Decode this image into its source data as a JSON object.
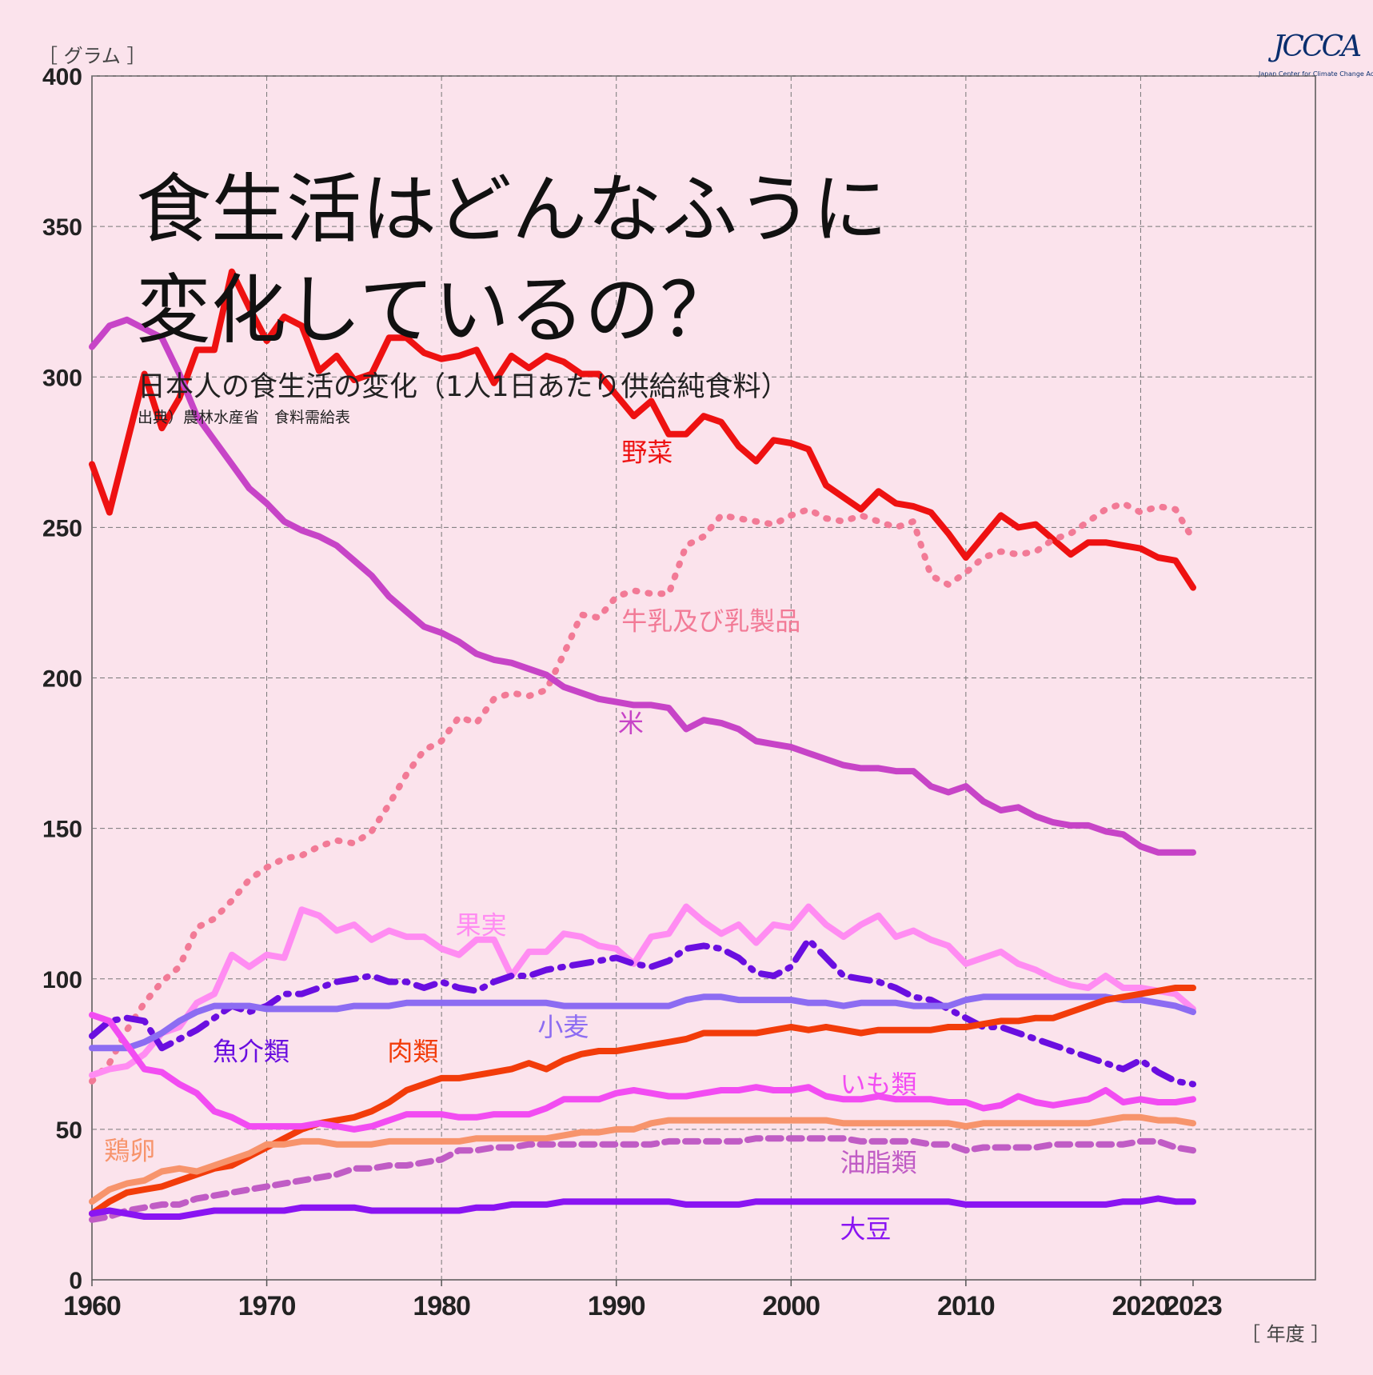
{
  "title_line1": "食生活はどんなふうに",
  "title_line2": "変化しているの？",
  "subtitle": "日本人の食生活の変化（1人1日あたり供給純食料）",
  "source": "出典）農林水産省　食料需給表",
  "y_unit": "［ グラム ］",
  "x_unit": "［ 年度 ］",
  "logo": {
    "text": "JCCCA",
    "subtext": "Japan Center for Climate Change Actions"
  },
  "chart_data": {
    "type": "line",
    "x_ticks": [
      1960,
      1970,
      1980,
      1990,
      2000,
      2010,
      2020,
      2023
    ],
    "y_ticks": [
      0,
      50,
      100,
      150,
      200,
      250,
      300,
      350,
      400
    ],
    "xlim": [
      1960,
      2030
    ],
    "ylim": [
      0,
      400
    ],
    "grid": true,
    "x": [
      1960,
      1961,
      1962,
      1963,
      1964,
      1965,
      1966,
      1967,
      1968,
      1969,
      1970,
      1971,
      1972,
      1973,
      1974,
      1975,
      1976,
      1977,
      1978,
      1979,
      1980,
      1981,
      1982,
      1983,
      1984,
      1985,
      1986,
      1987,
      1988,
      1989,
      1990,
      1991,
      1992,
      1993,
      1994,
      1995,
      1996,
      1997,
      1998,
      1999,
      2000,
      2001,
      2002,
      2003,
      2004,
      2005,
      2006,
      2007,
      2008,
      2009,
      2010,
      2011,
      2012,
      2013,
      2014,
      2015,
      2016,
      2017,
      2018,
      2019,
      2020,
      2021,
      2022,
      2023
    ],
    "series": [
      {
        "name": "野菜",
        "color": "#ee1111",
        "dash": "solid",
        "label_year": 1990.3,
        "label_value": 272,
        "values": [
          271,
          255,
          278,
          301,
          283,
          293,
          309,
          309,
          335,
          323,
          312,
          320,
          317,
          302,
          307,
          299,
          301,
          313,
          313,
          308,
          306,
          307,
          309,
          298,
          307,
          303,
          307,
          305,
          301,
          301,
          294,
          287,
          292,
          281,
          281,
          287,
          285,
          277,
          272,
          279,
          278,
          276,
          264,
          260,
          256,
          262,
          258,
          257,
          255,
          248,
          240,
          247,
          254,
          250,
          251,
          246,
          241,
          245,
          245,
          244,
          243,
          240,
          239,
          230
        ]
      },
      {
        "name": "牛乳及び乳製品",
        "color": "#f27a96",
        "dash": "dot",
        "label_year": 1990.3,
        "label_value": 216,
        "values": [
          66,
          72,
          83,
          92,
          99,
          104,
          117,
          120,
          126,
          133,
          137,
          140,
          141,
          144,
          146,
          145,
          149,
          158,
          168,
          176,
          179,
          187,
          185,
          193,
          195,
          194,
          196,
          208,
          221,
          220,
          227,
          229,
          228,
          228,
          244,
          247,
          254,
          253,
          252,
          251,
          254,
          256,
          253,
          252,
          254,
          252,
          250,
          252,
          234,
          231,
          235,
          240,
          242,
          241,
          242,
          246,
          248,
          252,
          256,
          258,
          255,
          257,
          256,
          246
        ]
      },
      {
        "name": "米",
        "color": "#c744c7",
        "dash": "solid",
        "label_year": 1990.1,
        "label_value": 182,
        "values": [
          310,
          317,
          319,
          316,
          313,
          301,
          287,
          279,
          271,
          263,
          258,
          252,
          249,
          247,
          244,
          239,
          234,
          227,
          222,
          217,
          215,
          212,
          208,
          206,
          205,
          203,
          201,
          197,
          195,
          193,
          192,
          191,
          191,
          190,
          183,
          186,
          185,
          183,
          179,
          178,
          177,
          175,
          173,
          171,
          170,
          170,
          169,
          169,
          164,
          162,
          164,
          159,
          156,
          157,
          154,
          152,
          151,
          151,
          149,
          148,
          144,
          142,
          142,
          142
        ]
      },
      {
        "name": "果実",
        "color": "#ff8cf2",
        "dash": "solid",
        "label_year": 1980.8,
        "label_value": 115,
        "values": [
          68,
          70,
          71,
          75,
          82,
          84,
          92,
          95,
          108,
          104,
          108,
          107,
          123,
          121,
          116,
          118,
          113,
          116,
          114,
          114,
          110,
          108,
          113,
          113,
          101,
          109,
          109,
          115,
          114,
          111,
          110,
          105,
          114,
          115,
          124,
          119,
          115,
          118,
          112,
          118,
          117,
          124,
          118,
          114,
          118,
          121,
          114,
          116,
          113,
          111,
          105,
          107,
          109,
          105,
          103,
          100,
          98,
          97,
          101,
          97,
          97,
          96,
          95,
          90
        ]
      },
      {
        "name": "魚介類",
        "color": "#6a0ee0",
        "dash": "dashdot",
        "label_year": 1966.9,
        "label_value": 73,
        "values": [
          81,
          86,
          87,
          86,
          77,
          80,
          83,
          87,
          91,
          89,
          91,
          95,
          95,
          97,
          99,
          100,
          101,
          99,
          99,
          97,
          99,
          97,
          96,
          99,
          101,
          101,
          103,
          104,
          105,
          106,
          107,
          105,
          104,
          106,
          110,
          111,
          110,
          107,
          102,
          101,
          104,
          113,
          107,
          101,
          100,
          99,
          97,
          94,
          93,
          90,
          87,
          84,
          84,
          82,
          80,
          78,
          76,
          74,
          72,
          70,
          73,
          69,
          66,
          65
        ]
      },
      {
        "name": "小麦",
        "color": "#8c6cf2",
        "dash": "solid",
        "label_year": 1985.5,
        "label_value": 81,
        "values": [
          77,
          77,
          77,
          79,
          82,
          86,
          89,
          91,
          91,
          91,
          90,
          90,
          90,
          90,
          90,
          91,
          91,
          91,
          92,
          92,
          92,
          92,
          92,
          92,
          92,
          92,
          92,
          91,
          91,
          91,
          91,
          91,
          91,
          91,
          93,
          94,
          94,
          93,
          93,
          93,
          93,
          92,
          92,
          91,
          92,
          92,
          92,
          91,
          91,
          91,
          93,
          94,
          94,
          94,
          94,
          94,
          94,
          94,
          94,
          93,
          93,
          92,
          91,
          89
        ]
      },
      {
        "name": "肉類",
        "color": "#f23c0a",
        "dash": "solid",
        "label_year": 1976.9,
        "label_value": 73,
        "values": [
          22,
          26,
          29,
          30,
          31,
          33,
          35,
          37,
          38,
          41,
          44,
          47,
          50,
          52,
          53,
          54,
          56,
          59,
          63,
          65,
          67,
          67,
          68,
          69,
          70,
          72,
          70,
          73,
          75,
          76,
          76,
          77,
          78,
          79,
          80,
          82,
          82,
          82,
          82,
          83,
          84,
          83,
          84,
          83,
          82,
          83,
          83,
          83,
          83,
          84,
          84,
          85,
          86,
          86,
          87,
          87,
          89,
          91,
          93,
          94,
          95,
          96,
          97,
          97
        ]
      },
      {
        "name": "いも類",
        "color": "#f24cf2",
        "dash": "solid",
        "label_year": 2002.8,
        "label_value": 62,
        "values": [
          88,
          86,
          78,
          70,
          69,
          65,
          62,
          56,
          54,
          51,
          51,
          51,
          51,
          52,
          51,
          50,
          51,
          53,
          55,
          55,
          55,
          54,
          54,
          55,
          55,
          55,
          57,
          60,
          60,
          60,
          62,
          63,
          62,
          61,
          61,
          62,
          63,
          63,
          64,
          63,
          63,
          64,
          61,
          60,
          60,
          61,
          60,
          60,
          60,
          59,
          59,
          57,
          58,
          61,
          59,
          58,
          59,
          60,
          63,
          59,
          60,
          59,
          59,
          60
        ]
      },
      {
        "name": "鶏卵",
        "color": "#f7946c",
        "dash": "solid",
        "label_year": 1960.7,
        "label_value": 40,
        "values": [
          26,
          30,
          32,
          33,
          36,
          37,
          36,
          38,
          40,
          42,
          45,
          45,
          46,
          46,
          45,
          45,
          45,
          46,
          46,
          46,
          46,
          46,
          47,
          47,
          47,
          47,
          47,
          48,
          49,
          49,
          50,
          50,
          52,
          53,
          53,
          53,
          53,
          53,
          53,
          53,
          53,
          53,
          53,
          52,
          52,
          52,
          52,
          52,
          52,
          52,
          51,
          52,
          52,
          52,
          52,
          52,
          52,
          52,
          53,
          54,
          54,
          53,
          53,
          52
        ]
      },
      {
        "name": "油脂類",
        "color": "#c05cc5",
        "dash": "dash",
        "label_year": 2002.8,
        "label_value": 36,
        "values": [
          20,
          21,
          23,
          24,
          25,
          25,
          27,
          28,
          29,
          30,
          31,
          32,
          33,
          34,
          35,
          37,
          37,
          38,
          38,
          39,
          40,
          43,
          43,
          44,
          44,
          45,
          45,
          45,
          45,
          45,
          45,
          45,
          45,
          46,
          46,
          46,
          46,
          46,
          47,
          47,
          47,
          47,
          47,
          47,
          46,
          46,
          46,
          46,
          45,
          45,
          43,
          44,
          44,
          44,
          44,
          45,
          45,
          45,
          45,
          45,
          46,
          46,
          44,
          43
        ]
      },
      {
        "name": "大豆",
        "color": "#8a14f2",
        "dash": "solid",
        "label_year": 2002.8,
        "label_value": 14,
        "values": [
          22,
          23,
          22,
          21,
          21,
          21,
          22,
          23,
          23,
          23,
          23,
          23,
          24,
          24,
          24,
          24,
          23,
          23,
          23,
          23,
          23,
          23,
          24,
          24,
          25,
          25,
          25,
          26,
          26,
          26,
          26,
          26,
          26,
          26,
          25,
          25,
          25,
          25,
          26,
          26,
          26,
          26,
          26,
          26,
          26,
          26,
          26,
          26,
          26,
          26,
          25,
          25,
          25,
          25,
          25,
          25,
          25,
          25,
          25,
          26,
          26,
          27,
          26,
          26
        ]
      }
    ]
  }
}
